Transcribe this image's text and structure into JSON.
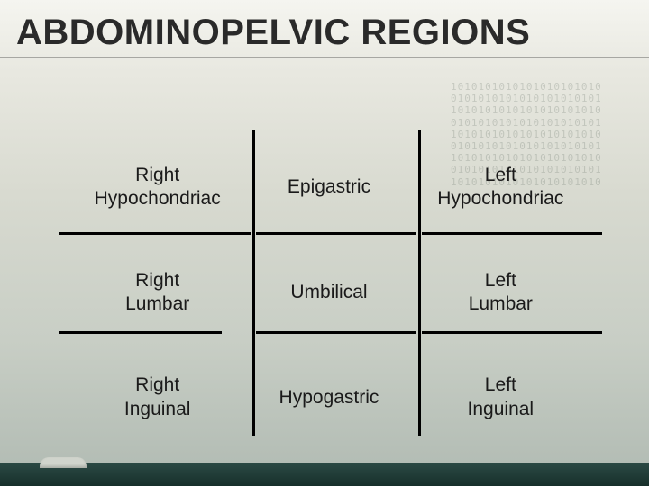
{
  "title": "ABDOMINOPELVIC REGIONS",
  "grid": {
    "type": "table",
    "columns": 3,
    "rows": 3,
    "cells": [
      [
        "Right\nHypochondriac",
        "Epigastric",
        "Left\nHypochondriac"
      ],
      [
        "Right\nLumbar",
        "Umbilical",
        "Left\nLumbar"
      ],
      [
        "Right\nInguinal",
        "Hypogastric",
        "Left\nInguinal"
      ]
    ],
    "cell_fontsize": 21,
    "cell_color": "#1a1a1a",
    "divider_color": "#000000",
    "divider_width": 3
  },
  "title_style": {
    "fontsize": 40,
    "color": "#2a2a2a",
    "underline_color": "rgba(40,40,40,0.35)"
  },
  "background": {
    "gradient": [
      "#f5f5f0",
      "#e8e8e0",
      "#d8dad0",
      "#c8cec5",
      "#b0bab2"
    ],
    "binary_overlay_color": "rgba(70,85,75,0.20)",
    "footer_gradient": [
      "#2b4a44",
      "#17302b"
    ]
  },
  "binary_text": "1010101010101010101010\n0101010101010101010101\n1010101010101010101010\n0101010101010101010101\n1010101010101010101010\n0101010101010101010101\n1010101010101010101010\n0101010101010101010101\n1010101010101010101010"
}
